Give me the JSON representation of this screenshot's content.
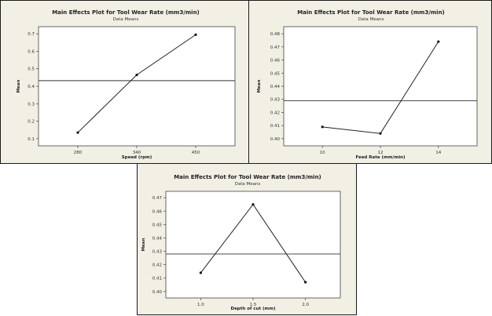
{
  "chart_data": [
    {
      "type": "line",
      "title": "Main Effects Plot for Tool Wear Rate (mm3/min)",
      "subtitle": "Data Means",
      "xlabel": "Speed (rpm)",
      "ylabel": "Mean",
      "categories": [
        "280",
        "340",
        "450"
      ],
      "values": [
        0.135,
        0.465,
        0.695
      ],
      "ylim": [
        0.1,
        0.7
      ],
      "yticks": [
        "0.1",
        "0.2",
        "0.3",
        "0.4",
        "0.5",
        "0.6",
        "0.7"
      ],
      "yticks_v": [
        0.1,
        0.2,
        0.3,
        0.4,
        0.5,
        0.6,
        0.7
      ],
      "mean_line": 0.432,
      "grid": false
    },
    {
      "type": "line",
      "title": "Main Effects Plot for Tool Wear Rate (mm3/min)",
      "subtitle": "Data Means",
      "xlabel": "Feed Rate (mm/min)",
      "ylabel": "Mean",
      "categories": [
        "10",
        "12",
        "14"
      ],
      "values": [
        0.409,
        0.404,
        0.474
      ],
      "ylim": [
        0.4,
        0.48
      ],
      "yticks": [
        "0.40",
        "0.41",
        "0.42",
        "0.43",
        "0.44",
        "0.45",
        "0.46",
        "0.47",
        "0.48"
      ],
      "yticks_v": [
        0.4,
        0.41,
        0.42,
        0.43,
        0.44,
        0.45,
        0.46,
        0.47,
        0.48
      ],
      "mean_line": 0.429,
      "grid": false
    },
    {
      "type": "line",
      "title": "Main Effects Plot for Tool Wear Rate (mm3/min)",
      "subtitle": "Data Means",
      "xlabel": "Depth of cut (mm)",
      "ylabel": "Mean",
      "categories": [
        "1.0",
        "1.5",
        "2.0"
      ],
      "values": [
        0.414,
        0.465,
        0.407
      ],
      "ylim": [
        0.4,
        0.47
      ],
      "yticks": [
        "0.40",
        "0.41",
        "0.42",
        "0.43",
        "0.44",
        "0.45",
        "0.46",
        "0.47"
      ],
      "yticks_v": [
        0.4,
        0.41,
        0.42,
        0.43,
        0.44,
        0.45,
        0.46,
        0.47
      ],
      "mean_line": 0.428,
      "grid": false
    }
  ]
}
